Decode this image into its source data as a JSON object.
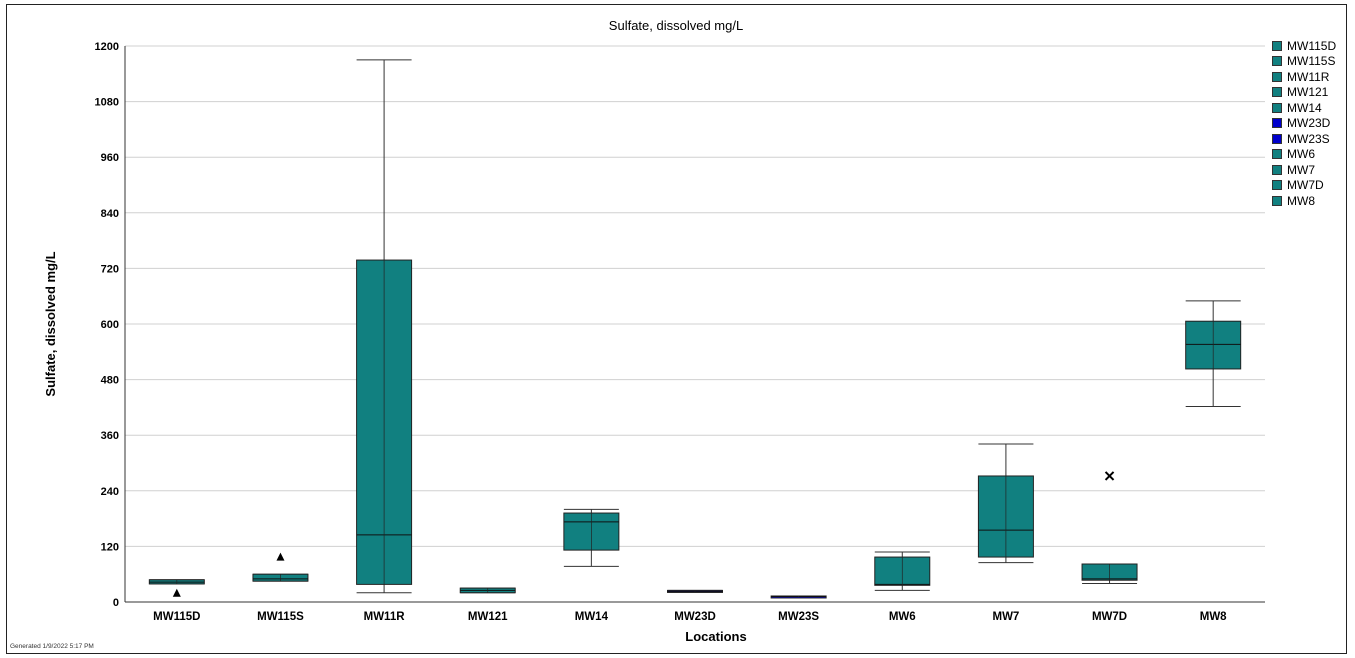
{
  "chart_data": {
    "type": "box",
    "title": "Sulfate, dissolved mg/L",
    "xlabel": "Locations",
    "ylabel": "Sulfate, dissolved mg/L",
    "ylim": [
      0,
      1200
    ],
    "yticks": [
      0,
      120,
      240,
      360,
      480,
      600,
      720,
      840,
      960,
      1080,
      1200
    ],
    "grid": true,
    "legend_position": "right",
    "categories": [
      "MW115D",
      "MW115S",
      "MW11R",
      "MW121",
      "MW14",
      "MW23D",
      "MW23S",
      "MW6",
      "MW7",
      "MW7D",
      "MW8"
    ],
    "colors": [
      "#118080",
      "#118080",
      "#118080",
      "#118080",
      "#118080",
      "#0000cc",
      "#0000cc",
      "#118080",
      "#118080",
      "#118080",
      "#118080"
    ],
    "boxes": [
      {
        "min": 39,
        "q1": 39,
        "median": 43,
        "q3": 48,
        "max": 48
      },
      {
        "min": 45,
        "q1": 45,
        "median": 50,
        "q3": 60,
        "max": 60
      },
      {
        "min": 20,
        "q1": 38,
        "median": 145,
        "q3": 738,
        "max": 1170
      },
      {
        "min": 20,
        "q1": 20,
        "median": 25,
        "q3": 30,
        "max": 30
      },
      {
        "min": 77,
        "q1": 112,
        "median": 173,
        "q3": 192,
        "max": 200
      },
      {
        "min": 21,
        "q1": 21,
        "median": 23,
        "q3": 25,
        "max": 25
      },
      {
        "min": 11,
        "q1": 11,
        "median": 12,
        "q3": 13,
        "max": 13
      },
      {
        "min": 25,
        "q1": 36,
        "median": 38,
        "q3": 97,
        "max": 108
      },
      {
        "min": 85,
        "q1": 97,
        "median": 155,
        "q3": 272,
        "max": 341
      },
      {
        "min": 40,
        "q1": 47,
        "median": 50,
        "q3": 82,
        "max": 82
      },
      {
        "min": 422,
        "q1": 503,
        "median": 556,
        "q3": 606,
        "max": 650
      }
    ],
    "markers": [
      {
        "category": "MW115D",
        "value": 20,
        "shape": "triangle"
      },
      {
        "category": "MW115S",
        "value": 98,
        "shape": "triangle"
      },
      {
        "category": "MW7D",
        "value": 272,
        "shape": "x"
      }
    ],
    "legend": [
      "MW115D",
      "MW115S",
      "MW11R",
      "MW121",
      "MW14",
      "MW23D",
      "MW23S",
      "MW6",
      "MW7",
      "MW7D",
      "MW8"
    ]
  },
  "footer": "Generated 1/9/2022 5:17 PM"
}
